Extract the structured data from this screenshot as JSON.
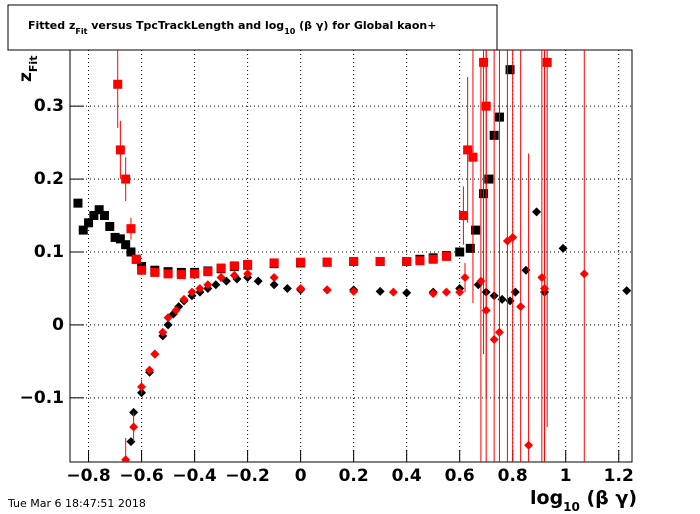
{
  "chart_data": {
    "type": "scatter",
    "title_parts": [
      "Fitted  z",
      "Fit",
      "  versus TpcTrackLength and log",
      "10",
      " (β γ) for Global kaon+"
    ],
    "xlabel_parts": [
      "log",
      "10",
      " (β γ)"
    ],
    "ylabel_parts": [
      "z",
      "Fit"
    ],
    "timestamp": "Tue Mar  6 18:47:51 2018",
    "xlim": [
      -0.87,
      1.25
    ],
    "ylim": [
      -0.188,
      0.377
    ],
    "xticks": [
      {
        "value": -0.8,
        "label": "−0.8"
      },
      {
        "value": -0.6,
        "label": "−0.6"
      },
      {
        "value": -0.4,
        "label": "−0.4"
      },
      {
        "value": -0.2,
        "label": "−0.2"
      },
      0,
      0.2,
      0.4,
      0.6,
      0.8,
      1,
      1.2
    ],
    "yticks": [
      {
        "value": -0.1,
        "label": "−0.1"
      },
      0,
      0.1,
      0.2,
      0.3
    ],
    "grid": true,
    "series": [
      {
        "color": "#000000",
        "marker": "square",
        "x": [
          -0.84,
          -0.82,
          -0.8,
          -0.78,
          -0.76,
          -0.74,
          -0.72,
          -0.7,
          -0.68,
          -0.66,
          -0.64,
          -0.62,
          -0.6,
          -0.55,
          -0.5,
          -0.45,
          -0.4,
          -0.35,
          -0.3,
          -0.25,
          -0.2,
          -0.1,
          0,
          0.1,
          0.2,
          0.3,
          0.4,
          0.45,
          0.5,
          0.55,
          0.6,
          0.64,
          0.66,
          0.69,
          0.71,
          0.73,
          0.75,
          0.79
        ],
        "values": [
          0.167,
          0.13,
          0.14,
          0.15,
          0.158,
          0.15,
          0.135,
          0.12,
          0.118,
          0.11,
          0.1,
          0.09,
          0.08,
          0.075,
          0.073,
          0.072,
          0.072,
          0.074,
          0.077,
          0.08,
          0.082,
          0.084,
          0.085,
          0.086,
          0.087,
          0.087,
          0.087,
          0.09,
          0.092,
          0.095,
          0.1,
          0.105,
          0.13,
          0.18,
          0.2,
          0.26,
          0.285,
          0.35
        ]
      },
      {
        "color": "#ff0000",
        "marker": "square",
        "x": [
          -0.69,
          -0.68,
          -0.66,
          -0.64,
          -0.62,
          -0.6,
          -0.55,
          -0.5,
          -0.45,
          -0.4,
          -0.35,
          -0.3,
          -0.25,
          -0.2,
          -0.1,
          0,
          0.1,
          0.2,
          0.3,
          0.4,
          0.45,
          0.5,
          0.55,
          0.614,
          0.63,
          0.65,
          0.69,
          0.7,
          0.93
        ],
        "values": [
          0.33,
          0.24,
          0.2,
          0.132,
          0.09,
          0.075,
          0.072,
          0.07,
          0.069,
          0.07,
          0.073,
          0.078,
          0.081,
          0.083,
          0.085,
          0.086,
          0.086,
          0.087,
          0.087,
          0.087,
          0.088,
          0.09,
          0.094,
          0.15,
          0.24,
          0.23,
          0.36,
          0.3,
          0.36
        ],
        "errors": [
          0.06,
          0.04,
          0.03,
          0.015,
          0.005,
          0.003,
          0.002,
          0.002,
          0.002,
          0.002,
          0.002,
          0.002,
          0.002,
          0.002,
          0.002,
          0.002,
          0.002,
          0.002,
          0.002,
          0.003,
          0.003,
          0.004,
          0.006,
          0.04,
          0.1,
          0.2,
          0.4,
          0.4,
          0.5
        ]
      },
      {
        "color": "#000000",
        "marker": "diamond",
        "x": [
          -0.64,
          -0.63,
          -0.6,
          -0.57,
          -0.55,
          -0.52,
          -0.5,
          -0.48,
          -0.46,
          -0.44,
          -0.41,
          -0.38,
          -0.35,
          -0.32,
          -0.28,
          -0.24,
          -0.2,
          -0.16,
          -0.1,
          -0.05,
          0,
          0.1,
          0.2,
          0.3,
          0.4,
          0.5,
          0.6,
          0.67,
          0.7,
          0.73,
          0.76,
          0.79,
          0.81,
          0.85,
          0.89,
          0.92,
          0.99,
          1.23
        ],
        "values": [
          -0.16,
          -0.12,
          -0.093,
          -0.065,
          -0.04,
          -0.015,
          0,
          0.015,
          0.025,
          0.033,
          0.04,
          0.045,
          0.05,
          0.055,
          0.06,
          0.063,
          0.065,
          0.06,
          0.055,
          0.05,
          0.048,
          0.048,
          0.048,
          0.046,
          0.044,
          0.045,
          0.05,
          0.055,
          0.045,
          0.04,
          0.035,
          0.033,
          0.045,
          0.075,
          0.155,
          0.045,
          0.105,
          0.047
        ]
      },
      {
        "color": "#ff0000",
        "marker": "diamond",
        "x": [
          -0.66,
          -0.63,
          -0.6,
          -0.57,
          -0.55,
          -0.52,
          -0.5,
          -0.47,
          -0.44,
          -0.41,
          -0.38,
          -0.35,
          -0.3,
          -0.25,
          -0.2,
          -0.1,
          0,
          0.1,
          0.2,
          0.35,
          0.5,
          0.55,
          0.6,
          0.62,
          0.68,
          0.7,
          0.73,
          0.75,
          0.78,
          0.8,
          0.83,
          0.86,
          0.91,
          0.92,
          1.07
        ],
        "values": [
          -0.185,
          -0.14,
          -0.085,
          -0.062,
          -0.04,
          -0.01,
          0.01,
          0.02,
          0.035,
          0.045,
          0.05,
          0.055,
          0.065,
          0.068,
          0.07,
          0.065,
          0.05,
          0.048,
          0.046,
          0.045,
          0.043,
          0.045,
          0.045,
          0.065,
          0.06,
          0.02,
          -0.02,
          -0.01,
          0.115,
          0.12,
          0.025,
          -0.165,
          0.065,
          0.05,
          0.07
        ],
        "errors": [
          0.03,
          0.02,
          0.01,
          0.005,
          0.004,
          0.003,
          0.003,
          0.002,
          0.002,
          0.002,
          0.002,
          0.002,
          0.002,
          0.002,
          0.002,
          0.002,
          0.002,
          0.002,
          0.002,
          0.002,
          0.003,
          0.004,
          0.005,
          0.02,
          0.3,
          0.4,
          0.5,
          0.5,
          0.5,
          0.5,
          0.5,
          0.4,
          0.5,
          0.5,
          0.5
        ]
      }
    ]
  }
}
